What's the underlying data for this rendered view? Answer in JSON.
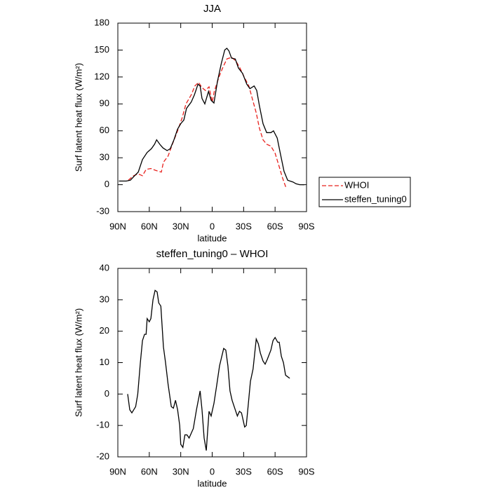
{
  "chart_data": [
    {
      "type": "line",
      "title": "JJA",
      "xlabel": "latitude",
      "ylabel": "Surf latent heat flux (W/m²)",
      "xlim": [
        90,
        -90
      ],
      "xticks": [
        {
          "value": 90,
          "label": "90N"
        },
        {
          "value": 60,
          "label": "60N"
        },
        {
          "value": 30,
          "label": "30N"
        },
        0,
        {
          "value": -30,
          "label": "30S"
        },
        {
          "value": -60,
          "label": "60S"
        },
        {
          "value": -90,
          "label": "90S"
        }
      ],
      "ylim": [
        -30,
        180
      ],
      "yticks": [
        -30,
        0,
        30,
        60,
        90,
        120,
        150,
        180
      ],
      "legend": "outside right",
      "series": [
        {
          "name": "WHOI",
          "color": "#e8201c",
          "line_style": "dashed",
          "x": [
            80,
            75,
            70.5,
            66.5,
            63,
            58.5,
            54,
            48.5,
            46.5,
            42,
            38,
            33,
            28.5,
            25,
            20,
            16.5,
            13,
            9.7,
            6.4,
            3,
            0,
            -2,
            -6.5,
            -10,
            -14,
            -18.5,
            -22.5,
            -26.5,
            -30.5,
            -35,
            -38.5,
            -42,
            -45,
            -48.5,
            -52,
            -56,
            -60,
            -64,
            -67,
            -70,
            -72
          ],
          "values": [
            5,
            10,
            12,
            10,
            17,
            18,
            16,
            14,
            25,
            32,
            45,
            60,
            75,
            90,
            100,
            110,
            114,
            108,
            105,
            109,
            92,
            104,
            120,
            130,
            140,
            142,
            138,
            130,
            120,
            110,
            95,
            80,
            63,
            50,
            45,
            43,
            35,
            20,
            8,
            -2,
            -2
          ]
        },
        {
          "name": "steffen_tuning0",
          "color": "#000000",
          "line_style": "solid",
          "x": [
            89,
            82,
            78,
            74,
            70.5,
            66.5,
            62,
            58,
            55,
            53,
            50,
            47,
            43,
            40,
            36.5,
            33,
            30,
            27,
            24.5,
            20,
            17,
            13.5,
            11.5,
            9.7,
            7,
            3.5,
            1,
            -1.7,
            -5,
            -8.7,
            -12,
            -14,
            -16,
            -18.5,
            -22,
            -25,
            -29,
            -33,
            -36,
            -40,
            -42.5,
            -45,
            -48.5,
            -52,
            -56,
            -58.5,
            -62,
            -65,
            -68.5,
            -72,
            -77,
            -80,
            -83.5,
            -88
          ],
          "values": [
            4,
            4,
            5,
            10,
            14,
            28,
            36,
            40,
            45,
            50,
            45,
            41,
            38,
            40,
            50,
            62,
            68,
            72,
            85,
            92,
            100,
            112,
            110,
            96,
            90,
            104,
            94,
            91,
            115,
            135,
            150,
            152,
            149,
            141,
            140,
            130,
            124,
            112,
            107,
            110,
            105,
            88,
            68,
            58,
            58,
            60,
            52,
            35,
            15,
            5,
            3,
            1,
            0,
            0
          ]
        }
      ]
    },
    {
      "type": "line",
      "title": "steffen_tuning0 – WHOI",
      "xlabel": "latitude",
      "ylabel": "Surf latent heat flux (W/m²)",
      "xlim": [
        90,
        -90
      ],
      "xticks": [
        {
          "value": 90,
          "label": "90N"
        },
        {
          "value": 60,
          "label": "60N"
        },
        {
          "value": 30,
          "label": "30N"
        },
        0,
        {
          "value": -30,
          "label": "30S"
        },
        {
          "value": -60,
          "label": "60S"
        },
        {
          "value": -90,
          "label": "90S"
        }
      ],
      "ylim": [
        -20,
        40
      ],
      "yticks": [
        -20,
        -10,
        0,
        10,
        20,
        30,
        40
      ],
      "series": [
        {
          "color": "#000000",
          "line_style": "solid",
          "x": [
            80.6,
            78.6,
            76.6,
            73,
            71,
            68.5,
            66.5,
            64.5,
            63,
            62,
            60,
            58.5,
            56.5,
            54.5,
            52.5,
            51,
            49,
            46.5,
            44.5,
            42,
            39,
            37,
            35,
            33,
            31,
            30,
            28,
            26,
            24,
            22,
            18,
            15,
            11.5,
            9.7,
            7.7,
            5.6,
            3,
            1,
            -1.7,
            -4.4,
            -7,
            -11,
            -13,
            -15,
            -17,
            -19,
            -22,
            -24,
            -26,
            -28,
            -31,
            -32.5,
            -34.5,
            -36.5,
            -39,
            -42,
            -44,
            -46,
            -48.5,
            -50.5,
            -52.5,
            -56,
            -58,
            -60,
            -62.5,
            -64,
            -66,
            -68,
            -70,
            -72,
            -74
          ],
          "values": [
            0,
            -5,
            -6,
            -4,
            0,
            10,
            17,
            19,
            19,
            24,
            23,
            24,
            30,
            33,
            32.5,
            29,
            28,
            15,
            10,
            3,
            -4,
            -4.5,
            -2,
            -5,
            -10,
            -16,
            -17,
            -13,
            -13,
            -14,
            -11,
            -5,
            1,
            -5,
            -14,
            -18,
            -5.5,
            -7,
            -3,
            3,
            9,
            14.5,
            14,
            9,
            1,
            -2,
            -5,
            -7,
            -5.5,
            -6,
            -10.5,
            -10,
            -3,
            4,
            8,
            17.5,
            16,
            13,
            10.5,
            9.5,
            11,
            14,
            17,
            18,
            16.5,
            16.5,
            12,
            10,
            6,
            5.5,
            5
          ]
        }
      ]
    }
  ]
}
